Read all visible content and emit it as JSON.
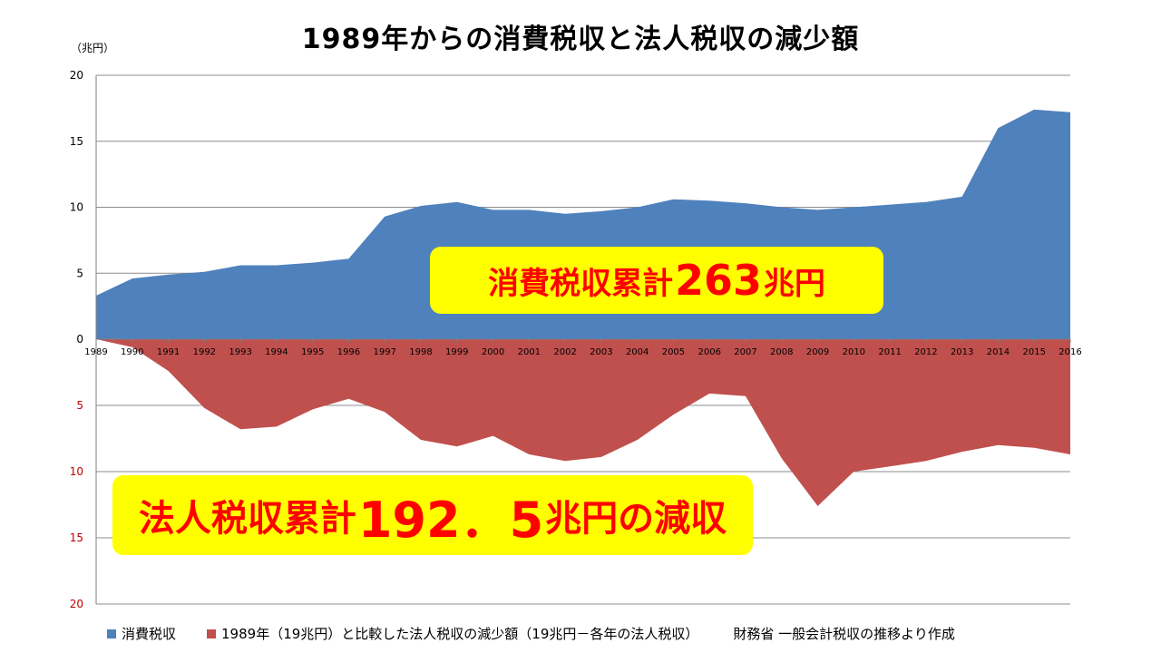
{
  "title": "1989年からの消費税収と法人税収の減少額",
  "unit_label": "（兆円）",
  "colors": {
    "consumption": "#4f81bd",
    "corporate": "#c0504d",
    "callout_bg": "#ffff00",
    "callout_text": "#ff0000"
  },
  "callouts": {
    "top": {
      "prefix": "消費税収累計",
      "number": "263",
      "suffix": "兆円"
    },
    "bottom": {
      "prefix": "法人税収累計",
      "number": "192．5",
      "suffix": "兆円の減収"
    }
  },
  "legend": {
    "consumption": "消費税収",
    "corporate": "1989年（19兆円）と比較した法人税収の減少額（19兆円－各年の法人税収）",
    "source_note": "財務省 一般会計税収の推移より作成"
  },
  "chart_data": {
    "type": "area",
    "x": [
      1989,
      1990,
      1991,
      1992,
      1993,
      1994,
      1995,
      1996,
      1997,
      1998,
      1999,
      2000,
      2001,
      2002,
      2003,
      2004,
      2005,
      2006,
      2007,
      2008,
      2009,
      2010,
      2011,
      2012,
      2013,
      2014,
      2015,
      2016
    ],
    "series": [
      {
        "name": "消費税収",
        "direction": "up",
        "values": [
          3.3,
          4.6,
          4.9,
          5.1,
          5.6,
          5.6,
          5.8,
          6.1,
          9.3,
          10.1,
          10.4,
          9.8,
          9.8,
          9.5,
          9.7,
          10.0,
          10.6,
          10.5,
          10.3,
          10.0,
          9.8,
          10.0,
          10.2,
          10.4,
          10.8,
          16.0,
          17.4,
          17.2
        ]
      },
      {
        "name": "1989年（19兆円）と比較した法人税収の減少額（19兆円－各年の法人税収）",
        "direction": "down",
        "values": [
          0,
          0.6,
          2.4,
          5.2,
          6.8,
          6.6,
          5.3,
          4.5,
          5.5,
          7.6,
          8.1,
          7.3,
          8.7,
          9.2,
          8.9,
          7.6,
          5.7,
          4.1,
          4.3,
          9.0,
          12.6,
          10.0,
          9.6,
          9.2,
          8.5,
          8.0,
          8.2,
          8.7
        ]
      }
    ],
    "y_ticks_top": [
      "20",
      "15",
      "10",
      "5",
      "0"
    ],
    "y_ticks_bottom": [
      "5",
      "10",
      "15",
      "20"
    ],
    "ylim_top": [
      0,
      20
    ],
    "ylim_bottom": [
      0,
      20
    ],
    "grid": true,
    "legend_position": "bottom"
  }
}
